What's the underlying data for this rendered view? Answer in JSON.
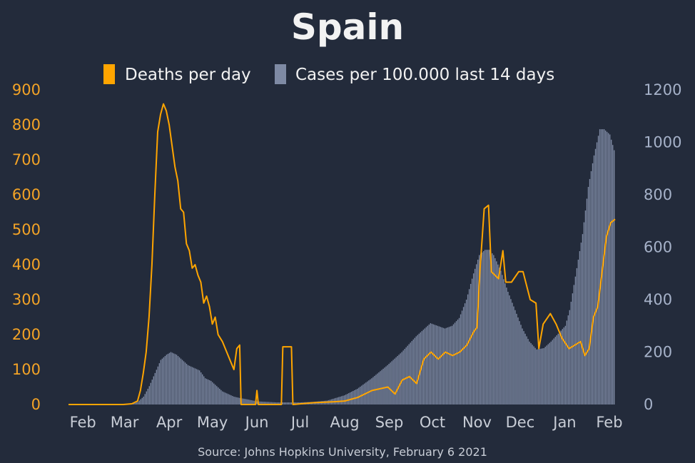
{
  "chart_data": {
    "type": "bar",
    "title": "Spain",
    "source": "Source: Johns Hopkins University, February 6 2021",
    "legend": [
      {
        "label": "Deaths per day",
        "color": "#ffa500"
      },
      {
        "label": "Cases per 100.000 last 14 days",
        "color": "#7e8aa4"
      }
    ],
    "legend_placement": "top-center",
    "grid": false,
    "y_left": {
      "min": 0,
      "max": 900,
      "ticks": [
        "0",
        "100",
        "200",
        "300",
        "400",
        "500",
        "600",
        "700",
        "800",
        "900"
      ]
    },
    "y_right": {
      "min": 0,
      "max": 1200,
      "ticks": [
        "0",
        "200",
        "400",
        "600",
        "800",
        "1000",
        "1200"
      ]
    },
    "x_ticks": [
      "Feb",
      "Mar",
      "Apr",
      "May",
      "Jun",
      "Jul",
      "Aug",
      "Sep",
      "Oct",
      "Nov",
      "Dec",
      "Jan",
      "Feb"
    ],
    "x_range": [
      "2020-01-22",
      "2021-02-05"
    ],
    "series": [
      {
        "name": "Deaths per day",
        "kind": "line",
        "axis": "left",
        "points": [
          [
            "2020-01-22",
            0
          ],
          [
            "2020-02-29",
            0
          ],
          [
            "2020-03-06",
            2
          ],
          [
            "2020-03-10",
            10
          ],
          [
            "2020-03-12",
            40
          ],
          [
            "2020-03-14",
            90
          ],
          [
            "2020-03-16",
            150
          ],
          [
            "2020-03-18",
            250
          ],
          [
            "2020-03-20",
            400
          ],
          [
            "2020-03-22",
            600
          ],
          [
            "2020-03-24",
            780
          ],
          [
            "2020-03-26",
            830
          ],
          [
            "2020-03-28",
            860
          ],
          [
            "2020-03-30",
            840
          ],
          [
            "2020-04-01",
            800
          ],
          [
            "2020-04-03",
            740
          ],
          [
            "2020-04-05",
            680
          ],
          [
            "2020-04-07",
            640
          ],
          [
            "2020-04-09",
            560
          ],
          [
            "2020-04-11",
            550
          ],
          [
            "2020-04-13",
            460
          ],
          [
            "2020-04-15",
            440
          ],
          [
            "2020-04-17",
            390
          ],
          [
            "2020-04-19",
            400
          ],
          [
            "2020-04-21",
            370
          ],
          [
            "2020-04-23",
            350
          ],
          [
            "2020-04-25",
            290
          ],
          [
            "2020-04-27",
            310
          ],
          [
            "2020-04-29",
            280
          ],
          [
            "2020-05-01",
            230
          ],
          [
            "2020-05-03",
            250
          ],
          [
            "2020-05-05",
            200
          ],
          [
            "2020-05-08",
            180
          ],
          [
            "2020-05-11",
            150
          ],
          [
            "2020-05-14",
            120
          ],
          [
            "2020-05-16",
            100
          ],
          [
            "2020-05-18",
            160
          ],
          [
            "2020-05-20",
            170
          ],
          [
            "2020-05-21",
            0
          ],
          [
            "2020-05-31",
            0
          ],
          [
            "2020-06-01",
            40
          ],
          [
            "2020-06-02",
            0
          ],
          [
            "2020-06-18",
            0
          ],
          [
            "2020-06-19",
            165
          ],
          [
            "2020-06-25",
            165
          ],
          [
            "2020-06-26",
            0
          ],
          [
            "2020-07-10",
            5
          ],
          [
            "2020-07-25",
            8
          ],
          [
            "2020-08-01",
            10
          ],
          [
            "2020-08-10",
            20
          ],
          [
            "2020-08-20",
            40
          ],
          [
            "2020-08-31",
            50
          ],
          [
            "2020-09-05",
            30
          ],
          [
            "2020-09-10",
            70
          ],
          [
            "2020-09-15",
            80
          ],
          [
            "2020-09-20",
            60
          ],
          [
            "2020-09-25",
            130
          ],
          [
            "2020-09-30",
            150
          ],
          [
            "2020-10-05",
            130
          ],
          [
            "2020-10-10",
            150
          ],
          [
            "2020-10-15",
            140
          ],
          [
            "2020-10-20",
            150
          ],
          [
            "2020-10-25",
            170
          ],
          [
            "2020-10-30",
            210
          ],
          [
            "2020-11-01",
            220
          ],
          [
            "2020-11-03",
            380
          ],
          [
            "2020-11-06",
            560
          ],
          [
            "2020-11-09",
            570
          ],
          [
            "2020-11-11",
            380
          ],
          [
            "2020-11-16",
            360
          ],
          [
            "2020-11-19",
            440
          ],
          [
            "2020-11-21",
            350
          ],
          [
            "2020-11-25",
            350
          ],
          [
            "2020-11-30",
            380
          ],
          [
            "2020-12-03",
            380
          ],
          [
            "2020-12-08",
            300
          ],
          [
            "2020-12-12",
            290
          ],
          [
            "2020-12-14",
            160
          ],
          [
            "2020-12-17",
            230
          ],
          [
            "2020-12-22",
            260
          ],
          [
            "2020-12-26",
            230
          ],
          [
            "2020-12-30",
            190
          ],
          [
            "2021-01-04",
            160
          ],
          [
            "2021-01-08",
            170
          ],
          [
            "2021-01-12",
            180
          ],
          [
            "2021-01-15",
            140
          ],
          [
            "2021-01-18",
            160
          ],
          [
            "2021-01-21",
            250
          ],
          [
            "2021-01-24",
            280
          ],
          [
            "2021-01-27",
            380
          ],
          [
            "2021-01-30",
            480
          ],
          [
            "2021-02-02",
            520
          ],
          [
            "2021-02-05",
            530
          ]
        ]
      },
      {
        "name": "Cases per 100.000 last 14 days",
        "kind": "bar",
        "axis": "right",
        "points": [
          [
            "2020-01-22",
            0
          ],
          [
            "2020-03-01",
            0
          ],
          [
            "2020-03-06",
            2
          ],
          [
            "2020-03-10",
            10
          ],
          [
            "2020-03-14",
            30
          ],
          [
            "2020-03-18",
            70
          ],
          [
            "2020-03-22",
            120
          ],
          [
            "2020-03-26",
            170
          ],
          [
            "2020-03-30",
            190
          ],
          [
            "2020-04-02",
            200
          ],
          [
            "2020-04-06",
            190
          ],
          [
            "2020-04-10",
            170
          ],
          [
            "2020-04-14",
            150
          ],
          [
            "2020-04-18",
            140
          ],
          [
            "2020-04-22",
            130
          ],
          [
            "2020-04-26",
            100
          ],
          [
            "2020-04-30",
            90
          ],
          [
            "2020-05-04",
            70
          ],
          [
            "2020-05-08",
            50
          ],
          [
            "2020-05-12",
            40
          ],
          [
            "2020-05-16",
            30
          ],
          [
            "2020-05-20",
            25
          ],
          [
            "2020-05-25",
            20
          ],
          [
            "2020-06-01",
            12
          ],
          [
            "2020-06-15",
            8
          ],
          [
            "2020-07-01",
            8
          ],
          [
            "2020-07-10",
            10
          ],
          [
            "2020-07-20",
            15
          ],
          [
            "2020-08-01",
            35
          ],
          [
            "2020-08-10",
            60
          ],
          [
            "2020-08-20",
            100
          ],
          [
            "2020-08-31",
            150
          ],
          [
            "2020-09-10",
            200
          ],
          [
            "2020-09-20",
            260
          ],
          [
            "2020-09-30",
            310
          ],
          [
            "2020-10-05",
            300
          ],
          [
            "2020-10-10",
            290
          ],
          [
            "2020-10-15",
            300
          ],
          [
            "2020-10-20",
            330
          ],
          [
            "2020-10-25",
            400
          ],
          [
            "2020-10-30",
            500
          ],
          [
            "2020-11-03",
            570
          ],
          [
            "2020-11-07",
            590
          ],
          [
            "2020-11-10",
            590
          ],
          [
            "2020-11-13",
            570
          ],
          [
            "2020-11-18",
            510
          ],
          [
            "2020-11-23",
            430
          ],
          [
            "2020-11-28",
            360
          ],
          [
            "2020-12-03",
            290
          ],
          [
            "2020-12-08",
            240
          ],
          [
            "2020-12-13",
            210
          ],
          [
            "2020-12-18",
            215
          ],
          [
            "2020-12-23",
            240
          ],
          [
            "2020-12-28",
            270
          ],
          [
            "2021-01-02",
            300
          ],
          [
            "2021-01-05",
            360
          ],
          [
            "2021-01-10",
            520
          ],
          [
            "2021-01-14",
            650
          ],
          [
            "2021-01-18",
            830
          ],
          [
            "2021-01-22",
            950
          ],
          [
            "2021-01-26",
            1050
          ],
          [
            "2021-01-29",
            1050
          ],
          [
            "2021-02-02",
            1030
          ],
          [
            "2021-02-05",
            970
          ]
        ]
      }
    ]
  }
}
